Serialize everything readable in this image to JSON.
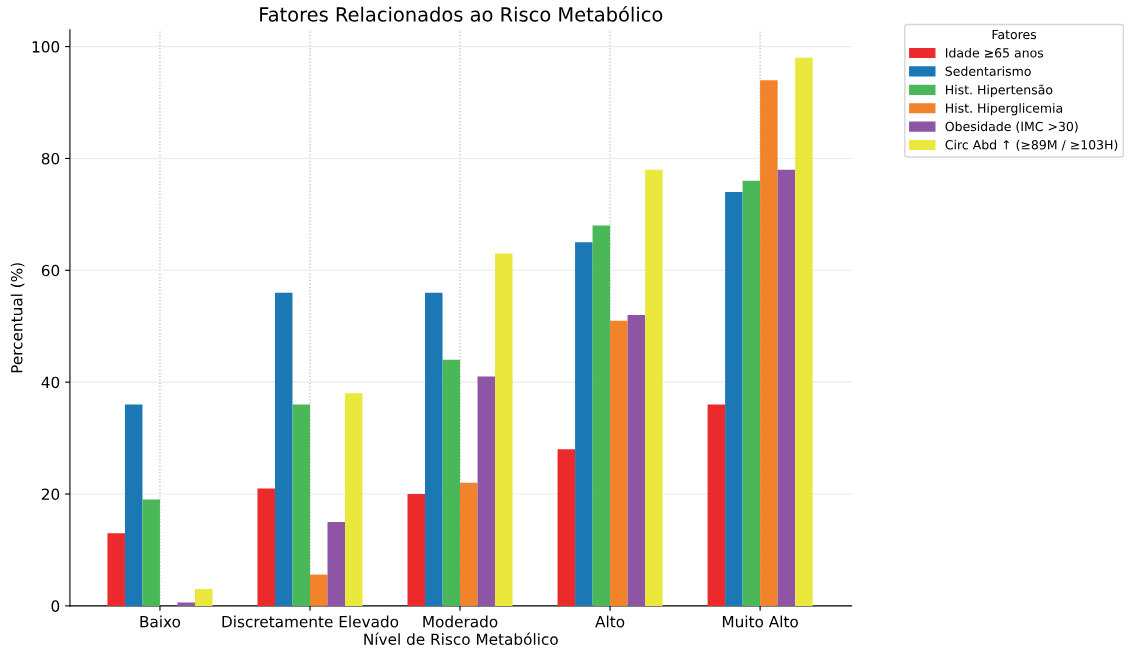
{
  "chart_data": {
    "type": "bar",
    "title": "Fatores Relacionados ao Risco Metabólico",
    "xlabel": "Nível de Risco Metabólico",
    "ylabel": "Percentual (%)",
    "legend_title": "Fatores",
    "legend": "top right",
    "grid": true,
    "categories": [
      "Baixo",
      "Discretamente Elevado",
      "Moderado",
      "Alto",
      "Muito Alto"
    ],
    "ylim": [
      0,
      103
    ],
    "yticks": [
      0,
      20,
      40,
      60,
      80,
      100
    ],
    "series": [
      {
        "name": "Idade ≥65 anos",
        "color": "#ec2a2c",
        "values": [
          13,
          21,
          20,
          28,
          36
        ]
      },
      {
        "name": "Sedentarismo",
        "color": "#1b78b5",
        "values": [
          36,
          56,
          56,
          65,
          74
        ]
      },
      {
        "name": "Hist. Hipertensão",
        "color": "#4ab858",
        "values": [
          19,
          36,
          44,
          68,
          76
        ]
      },
      {
        "name": "Hist. Hiperglicemia",
        "color": "#f3832b",
        "values": [
          0,
          5.6,
          22,
          51,
          94
        ]
      },
      {
        "name": "Obesidade (IMC >30)",
        "color": "#8d55a3",
        "values": [
          0.6,
          15,
          41,
          52,
          78
        ]
      },
      {
        "name": "Circ Abd ↑ (≥89M / ≥103H)",
        "color": "#ebe83d",
        "values": [
          3,
          38,
          63,
          78,
          98
        ]
      }
    ]
  }
}
